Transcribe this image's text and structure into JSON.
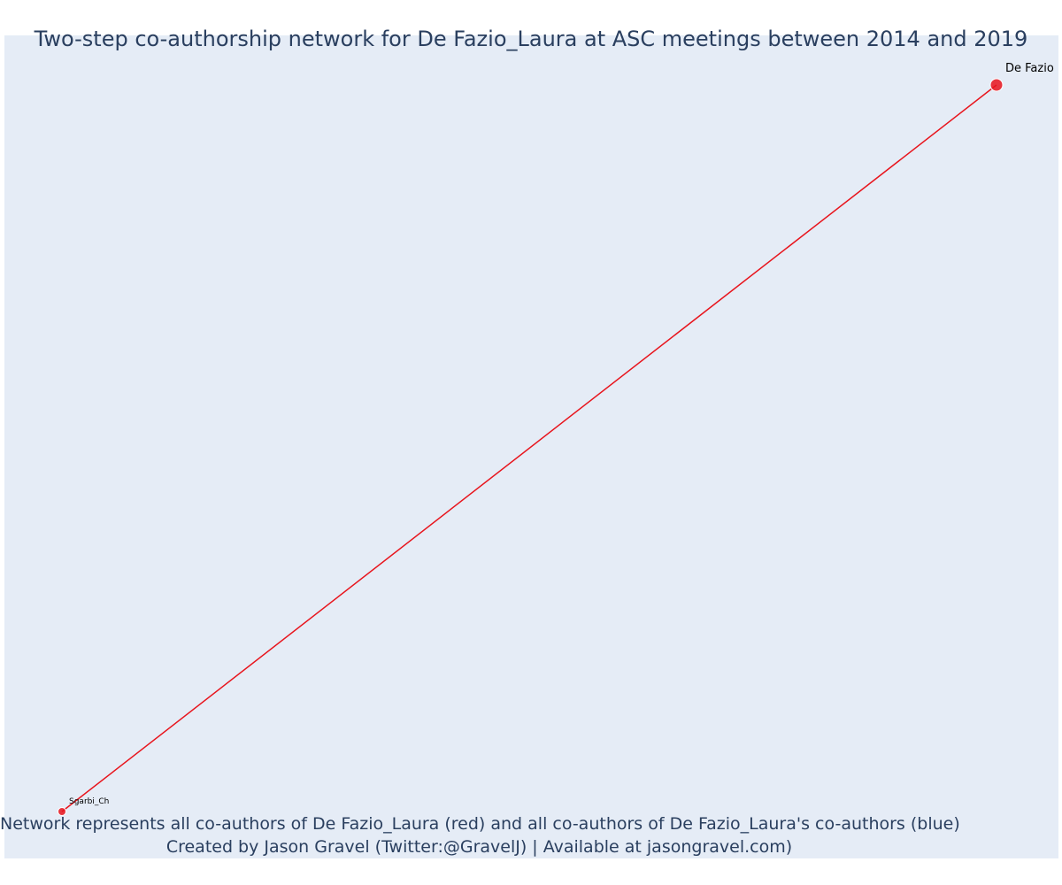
{
  "figure": {
    "title": "Two-step co-authorship network for De Fazio_Laura at ASC meetings between 2014 and 2019",
    "annotation_line_1": "Network represents all co-authors of De Fazio_Laura (red) and all co-authors of De Fazio_Laura's co-authors (blue)",
    "annotation_line_2": "Created by Jason Gravel (Twitter:@GravelJ) | Available at jasongravel.com)"
  },
  "colors": {
    "plot_background": "#e5ecf6",
    "text": "#2a3f5f",
    "first_step": "#e8141c",
    "node_outline": "#ffffff"
  },
  "chart_data": {
    "type": "network",
    "grid": false,
    "nodes": [
      {
        "id": "focal",
        "label": "De Fazio",
        "group": "focal",
        "x": 1.0,
        "y": 1.0
      },
      {
        "id": "sgarbi",
        "label": "Sgarbi_Ch",
        "group": "coauthor",
        "x": 0.0,
        "y": 0.0
      }
    ],
    "edges": [
      {
        "source": "focal",
        "target": "sgarbi",
        "group": "coauthor"
      }
    ]
  }
}
